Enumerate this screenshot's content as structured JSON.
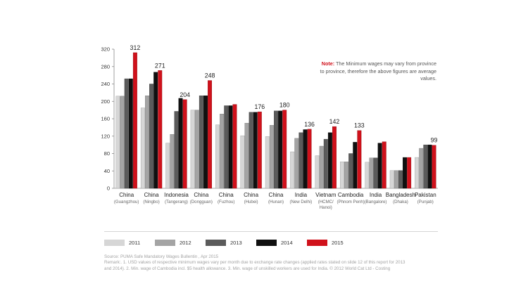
{
  "chart_data": {
    "type": "bar",
    "categories": [
      {
        "name": "China",
        "sub": [
          "(Guangzhou)"
        ]
      },
      {
        "name": "China",
        "sub": [
          "(Ningbo)"
        ]
      },
      {
        "name": "Indonesia",
        "sub": [
          "(Tangerang)"
        ]
      },
      {
        "name": "China",
        "sub": [
          "(Dongguan)"
        ]
      },
      {
        "name": "China",
        "sub": [
          "(Fuzhou)"
        ]
      },
      {
        "name": "China",
        "sub": [
          "(Hubei)"
        ]
      },
      {
        "name": "China",
        "sub": [
          "(Hunan)"
        ]
      },
      {
        "name": "India",
        "sub": [
          "(New Delhi)"
        ]
      },
      {
        "name": "Vietnam",
        "sub": [
          "(HCMC/",
          "Hanoi)"
        ]
      },
      {
        "name": "Cambodia",
        "sub": [
          "(Phnom Penh)"
        ]
      },
      {
        "name": "India",
        "sub": [
          "(Bangalore)"
        ]
      },
      {
        "name": "Bangladesh",
        "sub": [
          "(Dhaka)"
        ]
      },
      {
        "name": "Pakistan",
        "sub": [
          "(Punjab)"
        ]
      }
    ],
    "series": [
      {
        "name": "2011",
        "color": "#d6d6d6",
        "stroke": "#9a9a9a",
        "values": [
          212,
          185,
          104,
          180,
          146,
          121,
          119,
          84,
          75,
          61,
          60,
          41,
          71
        ]
      },
      {
        "name": "2012",
        "color": "#a4a4a4",
        "stroke": "#7a7a7a",
        "values": [
          212,
          213,
          124,
          180,
          171,
          150,
          145,
          115,
          97,
          61,
          70,
          41,
          92
        ]
      },
      {
        "name": "2013",
        "color": "#5b5b5b",
        "stroke": "#3a3a3a",
        "values": [
          252,
          240,
          177,
          213,
          190,
          175,
          178,
          128,
          113,
          80,
          70,
          41,
          100
        ]
      },
      {
        "name": "2014",
        "color": "#101010",
        "stroke": "#000000",
        "values": [
          252,
          267,
          207,
          213,
          190,
          175,
          178,
          135,
          128,
          106,
          104,
          71,
          100
        ]
      },
      {
        "name": "2015",
        "color": "#d0111b",
        "stroke": "#8a0b12",
        "values": [
          312,
          271,
          204,
          248,
          193,
          176,
          180,
          136,
          142,
          133,
          107,
          71,
          99
        ]
      }
    ],
    "data_labels": [
      "312",
      "271",
      "204",
      "248",
      "176",
      "180",
      "136",
      "142",
      "133",
      "99"
    ],
    "data_label_categories": [
      0,
      1,
      2,
      3,
      5,
      6,
      7,
      8,
      9,
      12
    ],
    "yticks": [
      "0",
      "40",
      "80",
      "120",
      "160",
      "200",
      "240",
      "280",
      "320"
    ],
    "ylim": [
      0,
      320
    ],
    "grid": false,
    "legend_position": "bottom"
  },
  "note": {
    "label": "Note:",
    "text": "The Minimum wages may vary from province to province, therefore the above figures are average values."
  },
  "footer": {
    "source": "Source: PUMA Safe Mandatory Wages Bullentin , Apr 2015",
    "remark_line1": "Remark:. 1. USD values of respective minimum wages vary per month due to exchange rate changes (applied rates stated on slide 12 of this report for 2013",
    "remark_line2": "and 2014). 2. Min. wage of Cambodia incl. $5 health allowance. 3. Min. wage of unskilled workers are used for India. © 2012 World Cat Ltd - Costing"
  }
}
